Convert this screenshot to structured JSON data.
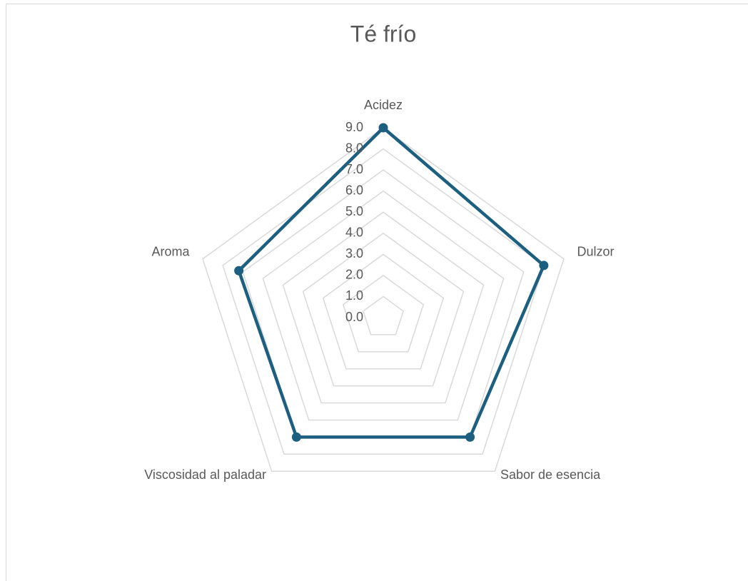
{
  "chart_data": {
    "type": "radar",
    "title": "Té frío",
    "categories": [
      "Acidez",
      "Dulzor",
      "Sabor de esencia",
      "Viscosidad al paladar",
      "Aroma"
    ],
    "series": [
      {
        "name": "Té frío",
        "color": "#1d5f80",
        "values": [
          9.0,
          8.0,
          7.0,
          7.0,
          7.2
        ]
      }
    ],
    "ylim": [
      0,
      9
    ],
    "yticks": [
      {
        "value": 0,
        "label": "0.0"
      },
      {
        "value": 1,
        "label": "1.0"
      },
      {
        "value": 2,
        "label": "2.0"
      },
      {
        "value": 3,
        "label": "3.0"
      },
      {
        "value": 4,
        "label": "4.0"
      },
      {
        "value": 5,
        "label": "5.0"
      },
      {
        "value": 6,
        "label": "6.0"
      },
      {
        "value": 7,
        "label": "7.0"
      },
      {
        "value": 8,
        "label": "8.0"
      },
      {
        "value": 9,
        "label": "9.0"
      }
    ],
    "grid": true
  }
}
